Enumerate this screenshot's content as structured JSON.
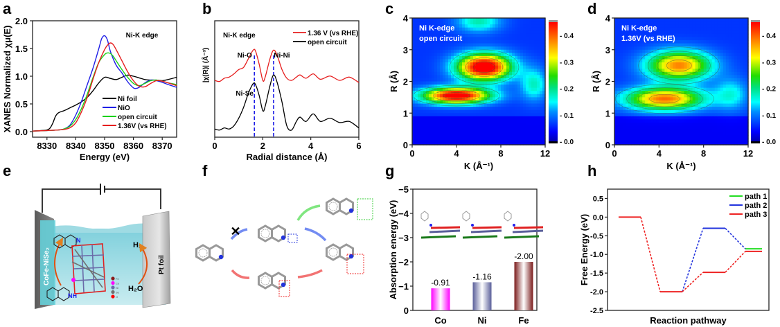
{
  "panels": {
    "a": {
      "letter": "a"
    },
    "b": {
      "letter": "b"
    },
    "c": {
      "letter": "c"
    },
    "d": {
      "letter": "d"
    },
    "e": {
      "letter": "e"
    },
    "f": {
      "letter": "f"
    },
    "g": {
      "letter": "g"
    },
    "h": {
      "letter": "h"
    }
  },
  "chart_data": [
    {
      "id": "a",
      "type": "line",
      "title": "",
      "annotation": "Ni-K edge",
      "xlabel": "Energy (eV)",
      "ylabel": "XANES Normalized χμ(E)",
      "xlim": [
        8325,
        8375
      ],
      "ylim": [
        -0.1,
        2.0
      ],
      "xticks": [
        8330,
        8340,
        8350,
        8360,
        8370
      ],
      "yticks": [
        0.0,
        0.5,
        1.0,
        1.5,
        2.0
      ],
      "ytick_labels": [
        "0.0",
        "0.5",
        "1.0",
        "1.5",
        "2.0"
      ],
      "legend_position": "bottom-right",
      "series": [
        {
          "name": "Ni foil",
          "color": "#000000",
          "x": [
            8325,
            8328,
            8330,
            8331,
            8332,
            8333,
            8334,
            8336,
            8338,
            8340,
            8342,
            8344,
            8346,
            8348,
            8350,
            8352,
            8354,
            8356,
            8358,
            8360,
            8362,
            8364,
            8366,
            8368,
            8370,
            8372,
            8375
          ],
          "y": [
            0.01,
            0.02,
            0.03,
            0.06,
            0.15,
            0.28,
            0.34,
            0.38,
            0.43,
            0.48,
            0.54,
            0.62,
            0.74,
            0.88,
            0.98,
            0.96,
            0.94,
            0.98,
            1.02,
            1.0,
            0.97,
            0.94,
            0.93,
            0.93,
            0.92,
            0.94,
            0.98
          ]
        },
        {
          "name": "NiO",
          "color": "#1f1fe6",
          "x": [
            8325,
            8330,
            8334,
            8336,
            8338,
            8340,
            8342,
            8344,
            8346,
            8348,
            8349,
            8350,
            8351,
            8352,
            8354,
            8356,
            8358,
            8360,
            8361,
            8362,
            8364,
            8366,
            8368,
            8370,
            8372,
            8375
          ],
          "y": [
            0.01,
            0.02,
            0.03,
            0.05,
            0.12,
            0.3,
            0.55,
            0.85,
            1.15,
            1.5,
            1.68,
            1.73,
            1.65,
            1.45,
            1.2,
            1.06,
            0.9,
            0.79,
            0.78,
            0.8,
            0.88,
            0.93,
            0.92,
            0.89,
            0.85,
            0.8
          ]
        },
        {
          "name": "open circuit",
          "color": "#1ad11a",
          "x": [
            8325,
            8330,
            8334,
            8336,
            8338,
            8340,
            8342,
            8344,
            8346,
            8348,
            8350,
            8351,
            8352,
            8353,
            8354,
            8356,
            8358,
            8360,
            8362,
            8364,
            8366,
            8368,
            8370,
            8372,
            8375
          ],
          "y": [
            0.01,
            0.02,
            0.03,
            0.05,
            0.1,
            0.22,
            0.42,
            0.68,
            0.98,
            1.25,
            1.39,
            1.42,
            1.41,
            1.36,
            1.28,
            1.12,
            0.98,
            0.87,
            0.83,
            0.87,
            0.92,
            0.93,
            0.91,
            0.88,
            0.85
          ]
        },
        {
          "name": "1.36V (vs RHE)",
          "color": "#e61e1e",
          "x": [
            8325,
            8330,
            8334,
            8336,
            8338,
            8340,
            8342,
            8344,
            8346,
            8348,
            8350,
            8351,
            8352,
            8353,
            8354,
            8356,
            8358,
            8360,
            8362,
            8364,
            8366,
            8368,
            8370,
            8372,
            8375
          ],
          "y": [
            0.01,
            0.02,
            0.03,
            0.04,
            0.07,
            0.16,
            0.36,
            0.62,
            0.95,
            1.25,
            1.48,
            1.56,
            1.6,
            1.57,
            1.48,
            1.28,
            1.08,
            0.92,
            0.82,
            0.81,
            0.87,
            0.92,
            0.91,
            0.88,
            0.83
          ]
        }
      ]
    },
    {
      "id": "b",
      "type": "line",
      "title": "",
      "annotation": "Ni-K edge",
      "xlabel": "Radial distance (Å)",
      "ylabel": "|χ(R)| (Å⁻³)",
      "xlim": [
        0,
        6
      ],
      "ylim": [
        0,
        1
      ],
      "xticks": [
        0,
        2,
        4,
        6
      ],
      "yticks": [],
      "legend_position": "top-right",
      "peak_labels": [
        {
          "text": "Ni-O",
          "x": 1.65
        },
        {
          "text": "Ni-Ni",
          "x": 2.45
        },
        {
          "text": "Ni-Se",
          "x": 1.65
        }
      ],
      "vlines_x": [
        1.65,
        2.45
      ],
      "vline_color": "#1f1fe6",
      "series": [
        {
          "name": "1.36 V (vs RHE)",
          "color": "#e61e1e",
          "x": [
            0,
            0.2,
            0.4,
            0.6,
            0.8,
            1.0,
            1.2,
            1.4,
            1.6,
            1.7,
            1.85,
            2.0,
            2.1,
            2.3,
            2.45,
            2.6,
            2.8,
            3.0,
            3.2,
            3.4,
            3.55,
            3.8,
            4.1,
            4.4,
            4.8,
            5.2,
            5.6,
            6.0
          ],
          "y": [
            0.5,
            0.49,
            0.52,
            0.53,
            0.56,
            0.6,
            0.62,
            0.7,
            0.78,
            0.77,
            0.65,
            0.5,
            0.53,
            0.7,
            0.78,
            0.73,
            0.6,
            0.52,
            0.5,
            0.53,
            0.55,
            0.52,
            0.56,
            0.51,
            0.54,
            0.5,
            0.53,
            0.48
          ]
        },
        {
          "name": "open circuit",
          "color": "#000000",
          "x": [
            0,
            0.2,
            0.4,
            0.6,
            0.8,
            1.0,
            1.2,
            1.4,
            1.6,
            1.7,
            1.85,
            2.0,
            2.1,
            2.3,
            2.45,
            2.6,
            2.8,
            3.0,
            3.2,
            3.4,
            3.55,
            3.8,
            4.1,
            4.4,
            4.8,
            5.2,
            5.6,
            6.0
          ],
          "y": [
            0.05,
            0.04,
            0.06,
            0.05,
            0.08,
            0.15,
            0.25,
            0.38,
            0.47,
            0.46,
            0.36,
            0.22,
            0.26,
            0.45,
            0.55,
            0.48,
            0.3,
            0.08,
            0.04,
            0.12,
            0.16,
            0.12,
            0.19,
            0.12,
            0.15,
            0.11,
            0.12,
            0.06
          ]
        }
      ]
    },
    {
      "id": "c",
      "type": "heatmap",
      "title": "Ni K-edge open circuit",
      "annotation_lines": [
        "Ni K-edge",
        "open circuit"
      ],
      "xlabel": "K (Å⁻¹)",
      "ylabel": "R (Å)",
      "xlim": [
        0,
        12
      ],
      "ylim": [
        0,
        4
      ],
      "xticks": [
        0,
        4,
        8,
        12
      ],
      "yticks": [
        0,
        1,
        2,
        3,
        4
      ],
      "colorbar": {
        "range": [
          0.0,
          0.45
        ],
        "ticks": [
          "0.0",
          "0.1",
          "0.2",
          "0.3",
          "0.4"
        ]
      },
      "peaks": [
        {
          "k": 6.5,
          "r": 2.45,
          "value": 0.45,
          "sk": 2.4,
          "sr": 0.42
        },
        {
          "k": 4.0,
          "r": 1.55,
          "value": 0.43,
          "sk": 3.0,
          "sr": 0.25
        },
        {
          "k": 6.0,
          "r": 3.9,
          "value": 0.12,
          "sk": 2.0,
          "sr": 0.35
        },
        {
          "k": 11.0,
          "r": 1.9,
          "value": 0.11,
          "sk": 1.2,
          "sr": 0.5
        }
      ],
      "background": 0.04
    },
    {
      "id": "d",
      "type": "heatmap",
      "title": "Ni K-edge 1.36V (vs RHE)",
      "annotation_lines": [
        "Ni K-edge",
        "1.36V (vs RHE)"
      ],
      "xlabel": "K (Å⁻¹)",
      "ylabel": "R (Å)",
      "xlim": [
        0,
        12
      ],
      "ylim": [
        0,
        4
      ],
      "xticks": [
        0,
        4,
        8,
        12
      ],
      "yticks": [
        0,
        1,
        2,
        3,
        4
      ],
      "colorbar": {
        "range": [
          0.0,
          0.45
        ],
        "ticks": [
          "0.0",
          "0.1",
          "0.2",
          "0.3",
          "0.4"
        ]
      },
      "peaks": [
        {
          "k": 5.8,
          "r": 2.5,
          "value": 0.32,
          "sk": 2.8,
          "sr": 0.45
        },
        {
          "k": 4.5,
          "r": 1.45,
          "value": 0.33,
          "sk": 3.4,
          "sr": 0.35
        },
        {
          "k": 10.5,
          "r": 1.6,
          "value": 0.09,
          "sk": 1.5,
          "sr": 0.5
        }
      ],
      "background": 0.04
    },
    {
      "id": "g",
      "type": "bar",
      "title": "",
      "xlabel": "",
      "ylabel": "Absorption energy (eV)",
      "categories": [
        "Co",
        "Ni",
        "Fe"
      ],
      "values": [
        -0.91,
        -1.16,
        -2.0
      ],
      "value_labels": [
        "-0.91",
        "-1.16",
        "-2.00"
      ],
      "colors": [
        "#ff00ff",
        "#5a5f9a",
        "#7a1a1a"
      ],
      "ylim": [
        0,
        -5
      ],
      "yticks": [
        0,
        -1,
        -2,
        -3,
        -4,
        -5
      ],
      "ytick_labels": [
        "0",
        "−1",
        "−2",
        "−3",
        "−4",
        "−5"
      ],
      "axis_inverted": true
    },
    {
      "id": "h",
      "type": "line",
      "title": "",
      "xlabel": "Reaction pathway",
      "ylabel": "Free Energy (eV)",
      "ylim": [
        -2.5,
        0.75
      ],
      "yticks": [
        0.5,
        0.0,
        -0.5,
        -1.0,
        -1.5,
        -2.0,
        -2.5
      ],
      "ytick_labels": [
        "0.5",
        "0.0",
        "-0.5",
        "-1.0",
        "-1.5",
        "-2.0",
        "-2.5"
      ],
      "legend_position": "top-right",
      "states": [
        {
          "step": 1,
          "energy": 0.0,
          "paths": [
            "path 3"
          ]
        },
        {
          "step": 2,
          "energy": -2.0,
          "paths": [
            "path 3"
          ]
        },
        {
          "step": 3,
          "energy": -0.3,
          "paths": [
            "path 2"
          ]
        },
        {
          "step": 3,
          "energy": -1.48,
          "paths": [
            "path 3"
          ]
        },
        {
          "step": 4,
          "energy": -0.85,
          "paths": [
            "path 1"
          ]
        },
        {
          "step": 4,
          "energy": -0.92,
          "paths": [
            "path 3"
          ]
        }
      ],
      "series": [
        {
          "name": "path 1",
          "color": "#22dd22"
        },
        {
          "name": "path 2",
          "color": "#2233dd"
        },
        {
          "name": "path 3",
          "color": "#ee2222"
        }
      ]
    }
  ],
  "panel_e": {
    "electrode_left_label": "CoFe-NiSe₂",
    "electrode_right_label": "Pt foil",
    "product_left_top": "N",
    "product_left_bottom": "NH",
    "h2_label": "H₂",
    "h2o_label": "H₂O",
    "element_legend": [
      "Fe",
      "Co",
      "Ni",
      "Se",
      "O"
    ],
    "element_colors": [
      "#8b1a1a",
      "#ff00ff",
      "#6a6aa8",
      "#707070",
      "#ff0000"
    ]
  },
  "panel_f": {
    "blocked_marker": "✕",
    "arrow_colors": {
      "green": "#55dd55",
      "blue": "#4466ee",
      "red": "#ee4444"
    }
  }
}
